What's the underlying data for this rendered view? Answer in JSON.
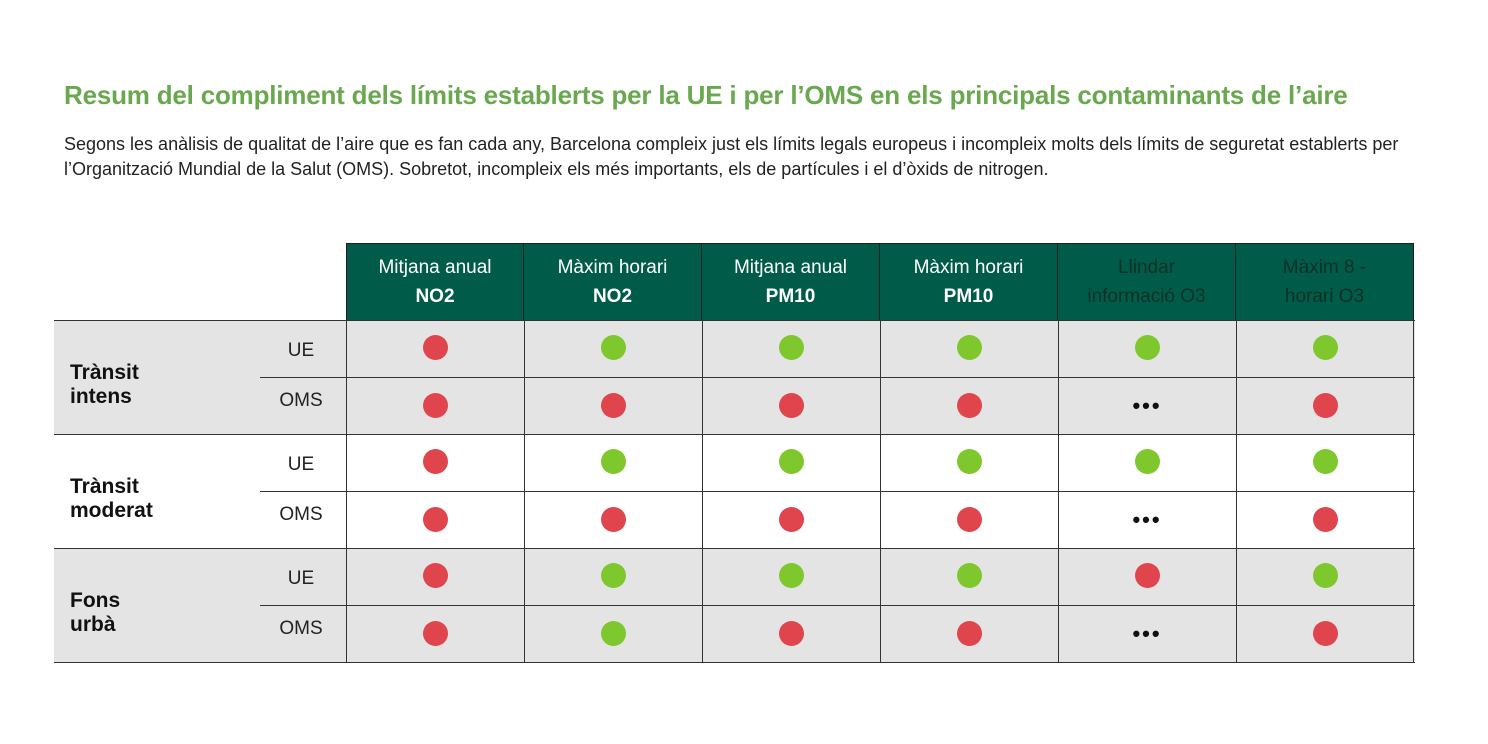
{
  "title": "Resum del compliment dels límits establerts per la UE i per l’OMS en els principals contaminants de l’aire",
  "subtitle": "Segons les anàlisis de qualitat de l’aire que es fan cada any, Barcelona compleix just els límits legals europeus i incompleix molts dels límits de seguretat establerts per l’Organització Mundial de la Salut (OMS). Sobretot, incompleix els més importants, els de partícules i el d’òxids de nitrogen.",
  "colors": {
    "pass": "#7ec72c",
    "fail": "#e0444d",
    "header_bg": "#005c48",
    "title": "#6aa84f"
  },
  "chart_data": {
    "type": "table",
    "title": "Resum del compliment dels límits establerts per la UE i per l’OMS en els principals contaminants de l’aire",
    "columns": [
      {
        "line1": "Mitjana anual",
        "line2": "NO2"
      },
      {
        "line1": "Màxim horari",
        "line2": "NO2"
      },
      {
        "line1": "Mitjana anual",
        "line2": "PM10"
      },
      {
        "line1": "Màxim horari",
        "line2": "PM10"
      },
      {
        "line1": "Llindar",
        "line2": "informació O3"
      },
      {
        "line1": "Màxim 8 -",
        "line2": "horari O3"
      }
    ],
    "groups": [
      {
        "label": "Trànsit intens",
        "rows": [
          {
            "label": "UE",
            "values": [
              "fail",
              "pass",
              "pass",
              "pass",
              "pass",
              "pass"
            ]
          },
          {
            "label": "OMS",
            "values": [
              "fail",
              "fail",
              "fail",
              "fail",
              "n/a",
              "fail"
            ]
          }
        ]
      },
      {
        "label": "Trànsit moderat",
        "rows": [
          {
            "label": "UE",
            "values": [
              "fail",
              "pass",
              "pass",
              "pass",
              "pass",
              "pass"
            ]
          },
          {
            "label": "OMS",
            "values": [
              "fail",
              "fail",
              "fail",
              "fail",
              "n/a",
              "fail"
            ]
          }
        ]
      },
      {
        "label": "Fons urbà",
        "rows": [
          {
            "label": "UE",
            "values": [
              "fail",
              "pass",
              "pass",
              "pass",
              "fail",
              "pass"
            ]
          },
          {
            "label": "OMS",
            "values": [
              "fail",
              "pass",
              "fail",
              "fail",
              "n/a",
              "fail"
            ]
          }
        ]
      }
    ],
    "na_symbol": "•••"
  }
}
